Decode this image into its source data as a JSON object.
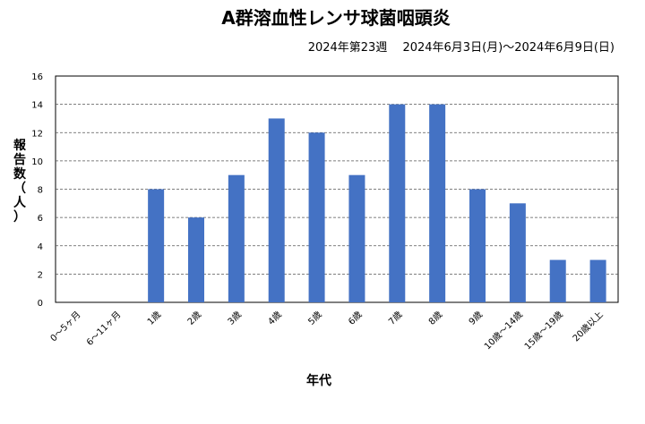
{
  "chart_data": {
    "type": "bar",
    "title": "A群溶血性レンサ球菌咽頭炎",
    "subtitle": "2024年第23週　 2024年6月3日(月)～2024年6月9日(日)",
    "xlabel": "年代",
    "ylabel": [
      "報",
      "告",
      "数",
      "（",
      "人",
      "）"
    ],
    "categories": [
      "0～5ヶ月",
      "6～11ヶ月",
      "1歳",
      "2歳",
      "3歳",
      "4歳",
      "5歳",
      "6歳",
      "7歳",
      "8歳",
      "9歳",
      "10歳～14歳",
      "15歳～19歳",
      "20歳以上"
    ],
    "values": [
      0,
      0,
      8,
      6,
      9,
      13,
      12,
      9,
      14,
      14,
      8,
      7,
      3,
      3
    ],
    "ylim": [
      0,
      16
    ],
    "yticks": [
      "0",
      "2",
      "4",
      "6",
      "8",
      "10",
      "12",
      "14",
      "16"
    ],
    "grid": true,
    "bar_color": "#4472C4"
  }
}
